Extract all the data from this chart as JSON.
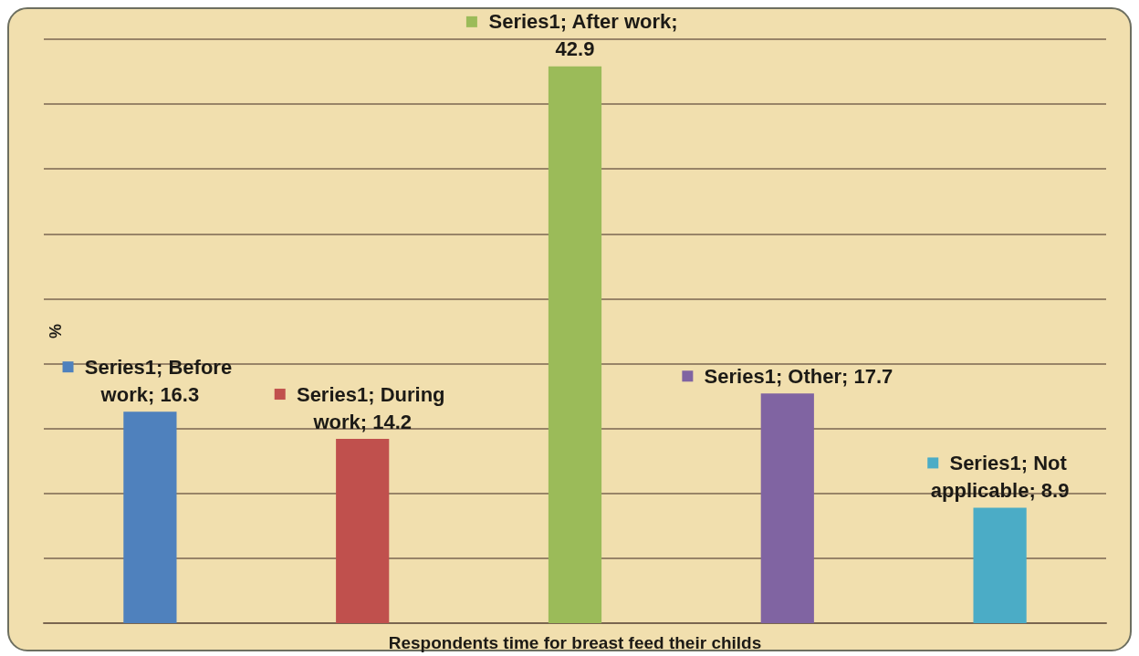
{
  "chart_data": {
    "type": "bar",
    "xlabel": "Respondents time for breast feed their childs",
    "ylabel": "%",
    "categories": [
      null,
      null,
      null,
      null,
      null
    ],
    "values": [
      16.3,
      14.2,
      42.9,
      17.7,
      8.9
    ],
    "colors": [
      "#4f81bd",
      "#c0504d",
      "#9bbb59",
      "#8064a2",
      "#4bacc6"
    ],
    "value_labels": [
      "Series1; Before work; 16.3",
      "Series1; During work; 14.2",
      "Series1; After work; 42.9",
      "Series1; Other; 17.7",
      "Series1; Not applicable; 8.9"
    ],
    "ylim": [
      0,
      45
    ],
    "yticks": [
      {
        "value": 0,
        "label": null
      },
      {
        "value": 5,
        "label": null
      },
      {
        "value": 10,
        "label": null
      },
      {
        "value": 15,
        "label": null
      },
      {
        "value": 20,
        "label": null
      },
      {
        "value": 25,
        "label": null
      },
      {
        "value": 30,
        "label": null
      },
      {
        "value": 35,
        "label": null
      },
      {
        "value": 40,
        "label": null
      },
      {
        "value": 45,
        "label": null
      }
    ],
    "tick_labels": false,
    "grid": "y"
  }
}
